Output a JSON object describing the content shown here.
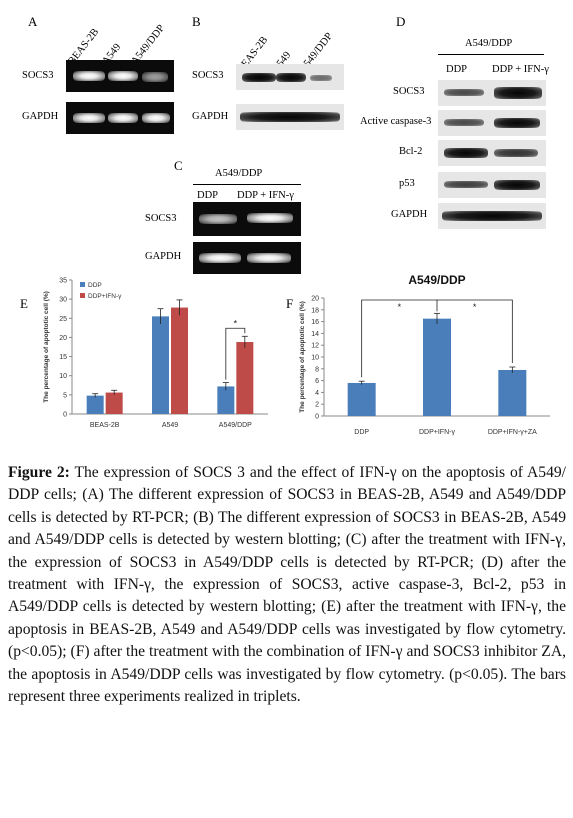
{
  "panels": {
    "A": {
      "letter": "A",
      "lanes": [
        "BEAS-2B",
        "A549",
        "A549/DDP"
      ],
      "rows": [
        "SOCS3",
        "GAPDH"
      ]
    },
    "B": {
      "letter": "B",
      "lanes": [
        "BEAS-2B",
        "A549",
        "A549/DDP"
      ],
      "rows": [
        "SOCS3",
        "GAPDH"
      ]
    },
    "C": {
      "letter": "C",
      "group": "A549/DDP",
      "lanes": [
        "DDP",
        "DDP + IFN-γ"
      ],
      "rows": [
        "SOCS3",
        "GAPDH"
      ]
    },
    "D": {
      "letter": "D",
      "group": "A549/DDP",
      "lanes": [
        "DDP",
        "DDP + IFN-γ"
      ],
      "rows": [
        "SOCS3",
        "Active caspase-3",
        "Bcl-2",
        "p53",
        "GAPDH"
      ]
    },
    "E": {
      "letter": "E"
    },
    "F": {
      "letter": "F"
    }
  },
  "chart_data": [
    {
      "type": "bar",
      "panel": "E",
      "categories": [
        "BEAS-2B",
        "A549",
        "A549/DDP"
      ],
      "series": [
        {
          "name": "DDP",
          "values": [
            4.8,
            25.5,
            7.2
          ],
          "errors": [
            0.5,
            2.0,
            1.0
          ],
          "color": "#4a7ebb"
        },
        {
          "name": "DDP+IFN-γ",
          "values": [
            5.6,
            27.8,
            18.8
          ],
          "errors": [
            0.6,
            2.0,
            1.5
          ],
          "color": "#be4b48"
        }
      ],
      "ylabel": "The percentage of apoptotic cell (%)",
      "ylim": [
        0,
        35
      ],
      "yticks": [
        0,
        5,
        10,
        15,
        20,
        25,
        30,
        35
      ],
      "significance": "*",
      "legend": "top-left",
      "grid": false
    },
    {
      "type": "bar",
      "panel": "F",
      "title": "A549/DDP",
      "categories": [
        "DDP",
        "DDP+IFN-γ",
        "DDP+IFN-γ+ZA"
      ],
      "values": [
        5.6,
        16.5,
        7.8
      ],
      "errors": [
        0.3,
        0.9,
        0.5
      ],
      "color": "#4a7ebb",
      "ylabel": "The percentage of apoptotic cell (%)",
      "ylim": [
        0,
        20
      ],
      "yticks": [
        0,
        2,
        4,
        6,
        8,
        10,
        12,
        14,
        16,
        18,
        20
      ],
      "significance": [
        "*",
        "*"
      ],
      "grid": false
    }
  ],
  "caption": {
    "label": "Figure 2:",
    "text": " The expression of SOCS 3 and the effect of IFN-γ on the apoptosis of A549/ DDP cells; (A) The different expression of SOCS3 in BEAS-2B, A549 and A549/DDP cells is detected by RT-PCR; (B) The different expression of SOCS3 in BEAS-2B, A549 and A549/DDP cells is detected by western blotting; (C) after the treatment with IFN-γ, the expression of SOCS3 in A549/DDP cells is detected by RT-PCR; (D) after the treatment with IFN-γ, the expression of SOCS3, active caspase-3, Bcl-2, p53 in A549/DDP cells is detected by western blotting; (E) after the treatment with IFN-γ, the apoptosis in BEAS-2B, A549 and A549/DDP cells was investigated by flow cytometry. (p<0.05); (F) after the treatment with the combination of IFN-γ and SOCS3 inhibitor ZA, the apoptosis in A549/DDP cells was investigated by flow cytometry. (p<0.05). The bars represent three experiments realized in triplets."
  }
}
